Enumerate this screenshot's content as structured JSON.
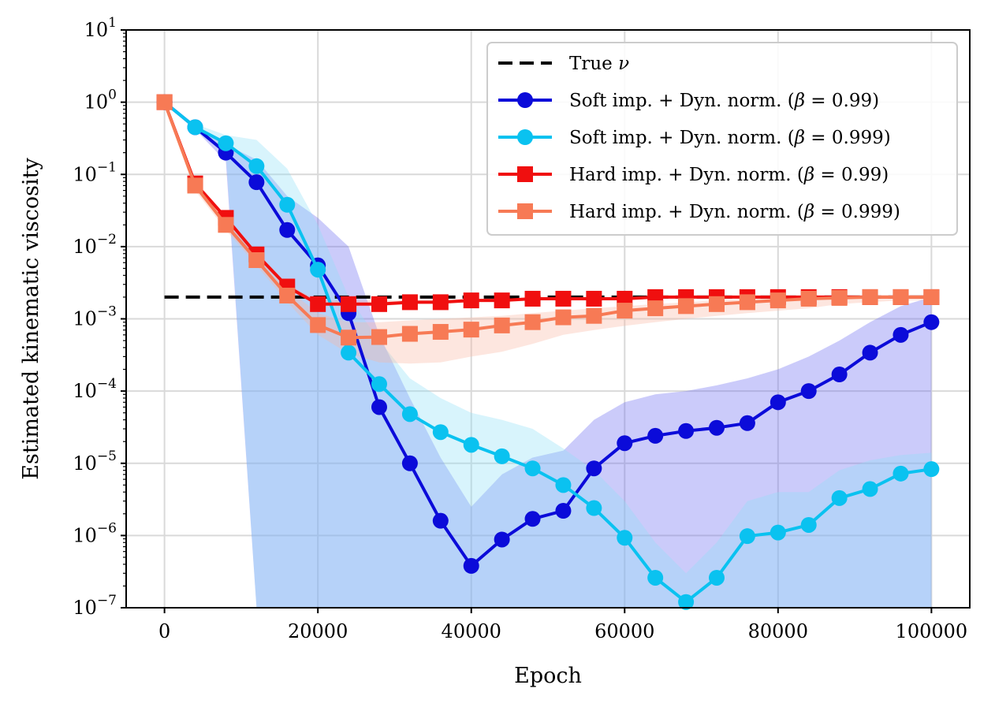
{
  "chart_data": {
    "type": "line",
    "xlabel": "Epoch",
    "ylabel": "Estimated kinematic viscosity",
    "xlim": [
      -5000,
      105000
    ],
    "ylim_log10": [
      -7,
      1
    ],
    "y_scale": "log",
    "grid": true,
    "legend_position": "top-right",
    "x_ticks": [
      0,
      20000,
      40000,
      60000,
      80000,
      100000
    ],
    "x_tick_labels": [
      "0",
      "20000",
      "40000",
      "60000",
      "80000",
      "100000"
    ],
    "y_tick_exponents": [
      1,
      0,
      -1,
      -2,
      -3,
      -4,
      -5,
      -6,
      -7
    ],
    "y_tick_labels": [
      {
        "base": "10",
        "exp": "1"
      },
      {
        "base": "10",
        "exp": "0"
      },
      {
        "base": "10",
        "exp": "−1"
      },
      {
        "base": "10",
        "exp": "−2"
      },
      {
        "base": "10",
        "exp": "−3"
      },
      {
        "base": "10",
        "exp": "−4"
      },
      {
        "base": "10",
        "exp": "−5"
      },
      {
        "base": "10",
        "exp": "−6"
      },
      {
        "base": "10",
        "exp": "−7"
      }
    ],
    "reference": {
      "name": "True ν",
      "legend_main": "True ",
      "legend_symbol": "ν",
      "value": 0.002,
      "x_range": [
        0,
        100000
      ],
      "color": "#000000"
    },
    "series": [
      {
        "name": "Soft imp. + Dyn. norm. (β = 0.99)",
        "legend_main": "Soft imp. + Dyn. norm. (",
        "legend_symbol": "β",
        "legend_value": " = 0.99)",
        "marker": "circle",
        "color": "#0b0bd9",
        "band_color": "#6b6bf0",
        "x": [
          0,
          4000,
          8000,
          12000,
          16000,
          20000,
          24000,
          28000,
          32000,
          36000,
          40000,
          44000,
          48000,
          52000,
          56000,
          60000,
          64000,
          68000,
          72000,
          76000,
          80000,
          84000,
          88000,
          92000,
          96000,
          100000
        ],
        "values": [
          1.0,
          0.45,
          0.2,
          0.078,
          0.017,
          0.0055,
          0.0012,
          6e-05,
          1e-05,
          1.6e-06,
          3.8e-07,
          8.8e-07,
          1.7e-06,
          2.2e-06,
          8.5e-06,
          1.9e-05,
          2.4e-05,
          2.8e-05,
          3.1e-05,
          3.6e-05,
          7e-05,
          0.0001,
          0.00017,
          0.00034,
          0.0006,
          0.0009
        ],
        "band_upper": [
          1.0,
          0.48,
          0.26,
          0.16,
          0.05,
          0.025,
          0.01,
          0.0006,
          8e-05,
          1.2e-05,
          2.5e-06,
          7e-06,
          1.2e-05,
          1.5e-05,
          4e-05,
          7e-05,
          9e-05,
          0.0001,
          0.00012,
          0.00015,
          0.0002,
          0.0003,
          0.0005,
          0.0009,
          0.0015,
          0.002
        ],
        "band_lower": [
          1.0,
          0.42,
          0.15,
          1e-07,
          1e-07,
          1e-07,
          1e-07,
          1e-07,
          1e-07,
          1e-07,
          1e-07,
          1e-07,
          1e-07,
          1e-07,
          1e-07,
          1e-07,
          1e-07,
          1e-07,
          1e-07,
          1e-07,
          1e-07,
          1e-07,
          1e-07,
          1e-07,
          1e-07,
          1e-07
        ]
      },
      {
        "name": "Soft imp. + Dyn. norm. (β = 0.999)",
        "legend_main": "Soft imp. + Dyn. norm. (",
        "legend_symbol": "β",
        "legend_value": " = 0.999)",
        "marker": "circle",
        "color": "#0ac2f0",
        "band_color": "#8fe0f7",
        "x": [
          0,
          4000,
          8000,
          12000,
          16000,
          20000,
          24000,
          28000,
          32000,
          36000,
          40000,
          44000,
          48000,
          52000,
          56000,
          60000,
          64000,
          68000,
          72000,
          76000,
          80000,
          84000,
          88000,
          92000,
          96000,
          100000
        ],
        "values": [
          1.0,
          0.45,
          0.27,
          0.13,
          0.038,
          0.0048,
          0.00034,
          0.000125,
          4.8e-05,
          2.7e-05,
          1.8e-05,
          1.25e-05,
          8.5e-06,
          5e-06,
          2.4e-06,
          9.3e-07,
          2.6e-07,
          1.2e-07,
          2.6e-07,
          9.8e-07,
          1.1e-06,
          1.4e-06,
          3.3e-06,
          4.4e-06,
          7.2e-06,
          8.3e-06
        ],
        "band_upper": [
          1.0,
          0.5,
          0.35,
          0.3,
          0.12,
          0.02,
          0.002,
          0.0005,
          0.00015,
          8e-05,
          5e-05,
          4e-05,
          3e-05,
          1.6e-05,
          8e-06,
          3e-06,
          8e-07,
          3e-07,
          8e-07,
          3e-06,
          4e-06,
          4e-06,
          8e-06,
          1.1e-05,
          1.3e-05,
          1.4e-05
        ],
        "band_lower": [
          1.0,
          0.4,
          0.2,
          1e-07,
          1e-07,
          1e-07,
          1e-07,
          1e-07,
          1e-07,
          1e-07,
          1e-07,
          1e-07,
          1e-07,
          1e-07,
          1e-07,
          1e-07,
          1e-07,
          1e-07,
          1e-07,
          1e-07,
          1e-07,
          1e-07,
          1e-07,
          1e-07,
          1e-07,
          1e-07
        ]
      },
      {
        "name": "Hard imp. + Dyn. norm. (β = 0.99)",
        "legend_main": "Hard imp. + Dyn. norm. (",
        "legend_symbol": "β",
        "legend_value": " = 0.99)",
        "marker": "square",
        "color": "#f00f0f",
        "band_color": "#f6a79b",
        "x": [
          0,
          4000,
          8000,
          12000,
          16000,
          20000,
          24000,
          28000,
          32000,
          36000,
          40000,
          44000,
          48000,
          52000,
          56000,
          60000,
          64000,
          68000,
          72000,
          76000,
          80000,
          84000,
          88000,
          92000,
          96000,
          100000
        ],
        "values": [
          1.0,
          0.075,
          0.025,
          0.0078,
          0.0028,
          0.0016,
          0.0016,
          0.0016,
          0.0017,
          0.0017,
          0.0018,
          0.0018,
          0.0019,
          0.0019,
          0.0019,
          0.0019,
          0.002,
          0.002,
          0.002,
          0.002,
          0.002,
          0.002,
          0.002,
          0.002,
          0.002,
          0.002
        ],
        "band_upper": [
          1.0,
          0.08,
          0.027,
          0.0085,
          0.003,
          0.0018,
          0.0018,
          0.0018,
          0.0018,
          0.0018,
          0.0019,
          0.0019,
          0.002,
          0.002,
          0.002,
          0.002,
          0.0021,
          0.0021,
          0.0021,
          0.0021,
          0.0021,
          0.0021,
          0.0021,
          0.0021,
          0.0021,
          0.0021
        ],
        "band_lower": [
          1.0,
          0.07,
          0.023,
          0.0072,
          0.0026,
          0.0015,
          0.0015,
          0.0015,
          0.0016,
          0.0016,
          0.0017,
          0.0017,
          0.0018,
          0.0018,
          0.0018,
          0.0018,
          0.0019,
          0.0019,
          0.0019,
          0.0019,
          0.0019,
          0.0019,
          0.0019,
          0.0019,
          0.0019,
          0.0019
        ]
      },
      {
        "name": "Hard imp. + Dyn. norm. (β = 0.999)",
        "legend_main": "Hard imp. + Dyn. norm. (",
        "legend_symbol": "β",
        "legend_value": " = 0.999)",
        "marker": "square",
        "color": "#f77a55",
        "band_color": "#f9b8a3",
        "x": [
          0,
          4000,
          8000,
          12000,
          16000,
          20000,
          24000,
          28000,
          32000,
          36000,
          40000,
          44000,
          48000,
          52000,
          56000,
          60000,
          64000,
          68000,
          72000,
          76000,
          80000,
          84000,
          88000,
          92000,
          96000,
          100000
        ],
        "values": [
          1.0,
          0.07,
          0.02,
          0.0065,
          0.0021,
          0.00082,
          0.00055,
          0.00056,
          0.00062,
          0.00066,
          0.00071,
          0.00081,
          0.0009,
          0.00105,
          0.0011,
          0.0013,
          0.0014,
          0.0015,
          0.0016,
          0.0017,
          0.0018,
          0.0019,
          0.00195,
          0.002,
          0.002,
          0.002
        ],
        "band_upper": [
          1.0,
          0.08,
          0.024,
          0.0078,
          0.0026,
          0.0012,
          0.0009,
          0.0009,
          0.00095,
          0.001,
          0.00105,
          0.0011,
          0.0012,
          0.0013,
          0.0014,
          0.0015,
          0.0016,
          0.0017,
          0.0018,
          0.0019,
          0.002,
          0.0021,
          0.0021,
          0.0021,
          0.0021,
          0.0021
        ],
        "band_lower": [
          1.0,
          0.06,
          0.017,
          0.0055,
          0.0017,
          0.0006,
          0.00033,
          0.00025,
          0.00024,
          0.00025,
          0.0003,
          0.00035,
          0.00045,
          0.0006,
          0.0007,
          0.0008,
          0.0009,
          0.001,
          0.0011,
          0.0012,
          0.0013,
          0.0014,
          0.0016,
          0.0017,
          0.0018,
          0.0018
        ]
      }
    ]
  }
}
